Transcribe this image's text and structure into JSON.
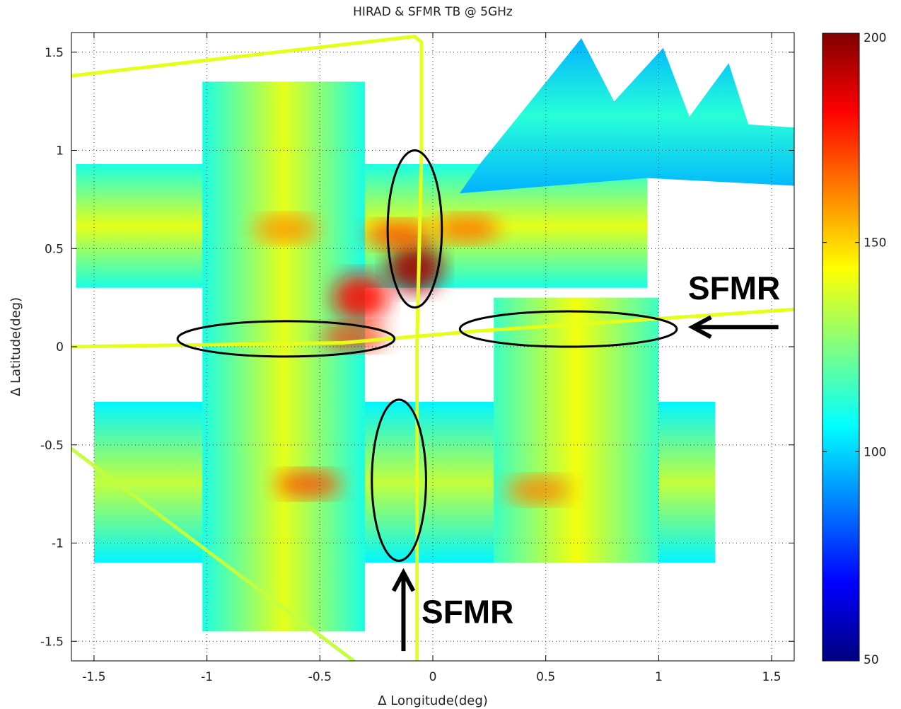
{
  "chart_data": {
    "type": "heatmap",
    "title": "HIRAD & SFMR TB @ 5GHz",
    "xlabel": "Δ Longitude(deg)",
    "ylabel": "Δ Latitude(deg)",
    "xlim": [
      -1.6,
      1.6
    ],
    "ylim": [
      -1.6,
      1.6
    ],
    "x_ticks": [
      -1.5,
      -1,
      -0.5,
      0,
      0.5,
      1,
      1.5
    ],
    "x_tick_labels": [
      "-1.5",
      "-1",
      "-0.5",
      "0",
      "0.5",
      "1",
      "1.5"
    ],
    "y_ticks": [
      -1.5,
      -1,
      -0.5,
      0,
      0.5,
      1,
      1.5
    ],
    "y_tick_labels": [
      "-1.5",
      "-1",
      "-0.5",
      "0",
      "0.5",
      "1",
      "1.5"
    ],
    "grid": true,
    "colorbar": {
      "colormap": "jet",
      "min": 50,
      "max": 200,
      "ticks": [
        50,
        100,
        150,
        200
      ],
      "tick_labels": [
        "50",
        "100",
        "150",
        "200"
      ]
    },
    "swaths": [
      {
        "orientation": "horizontal",
        "x": [
          -1.58,
          0.95
        ],
        "y": [
          0.3,
          0.93
        ],
        "tb_edge": 110,
        "tb_center": 140
      },
      {
        "orientation": "horizontal",
        "x": [
          -1.5,
          1.25
        ],
        "y": [
          -1.1,
          -0.28
        ],
        "tb_edge": 105,
        "tb_center": 135
      },
      {
        "orientation": "vertical",
        "x": [
          -1.02,
          -0.3
        ],
        "y": [
          -1.45,
          1.35
        ],
        "tb_edge": 110,
        "tb_center": 140
      },
      {
        "orientation": "vertical",
        "x": [
          0.27,
          1.0
        ],
        "y": [
          -1.1,
          0.25
        ],
        "tb_edge": 115,
        "tb_center": 142
      },
      {
        "orientation": "fan",
        "x": [
          0.15,
          1.6
        ],
        "y": [
          0.82,
          1.6
        ],
        "tb_edge": 95,
        "tb_center": 112
      }
    ],
    "hotspots": [
      {
        "x": -0.08,
        "y": 0.4,
        "tb": 195
      },
      {
        "x": -0.15,
        "y": 0.57,
        "tb": 170
      },
      {
        "x": 0.15,
        "y": 0.6,
        "tb": 165
      },
      {
        "x": -0.32,
        "y": 0.25,
        "tb": 180
      },
      {
        "x": -0.35,
        "y": 0.05,
        "tb": 172
      },
      {
        "x": -0.65,
        "y": 0.6,
        "tb": 160
      },
      {
        "x": -0.55,
        "y": -0.7,
        "tb": 170
      },
      {
        "x": 0.47,
        "y": -0.73,
        "tb": 162
      }
    ],
    "sfmr_tracks": [
      {
        "name": "SFMR",
        "points": [
          [
            -1.6,
            0.0
          ],
          [
            -0.4,
            0.02
          ],
          [
            0.2,
            0.08
          ],
          [
            1.6,
            0.19
          ]
        ],
        "tb": 140
      },
      {
        "name": "SFMR",
        "points": [
          [
            -0.07,
            -1.6
          ],
          [
            -0.07,
            0.0
          ],
          [
            -0.05,
            1.0
          ],
          [
            -0.05,
            1.55
          ],
          [
            -0.08,
            1.58
          ]
        ],
        "tb": 140
      },
      {
        "points": [
          [
            -1.6,
            1.38
          ],
          [
            -0.08,
            1.58
          ]
        ],
        "tb": 140
      },
      {
        "points": [
          [
            -1.6,
            -0.52
          ],
          [
            -0.35,
            -1.6
          ]
        ],
        "tb": 135
      }
    ],
    "annotations": [
      {
        "label": "SFMR",
        "arrow": "left",
        "text_x": 1.13,
        "text_y": 0.3,
        "arrow_from": [
          1.53,
          0.1
        ],
        "arrow_to": [
          1.15,
          0.1
        ]
      },
      {
        "label": "SFMR",
        "arrow": "up",
        "text_x": -0.05,
        "text_y": -1.35,
        "arrow_from": [
          -0.13,
          -1.55
        ],
        "arrow_to": [
          -0.13,
          -1.15
        ]
      }
    ],
    "highlight_ellipses": [
      {
        "cx": -0.08,
        "cy": 0.6,
        "rx": 0.12,
        "ry": 0.4
      },
      {
        "cx": -0.65,
        "cy": 0.04,
        "rx": 0.48,
        "ry": 0.09
      },
      {
        "cx": 0.6,
        "cy": 0.09,
        "rx": 0.48,
        "ry": 0.09
      },
      {
        "cx": -0.15,
        "cy": -0.68,
        "rx": 0.12,
        "ry": 0.41
      }
    ]
  }
}
